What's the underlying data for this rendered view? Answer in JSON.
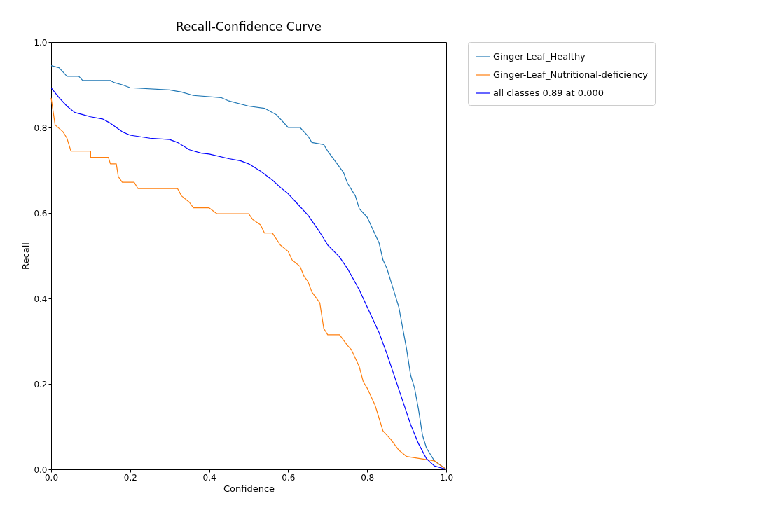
{
  "chart_data": {
    "type": "line",
    "title": "Recall-Confidence Curve",
    "xlabel": "Confidence",
    "ylabel": "Recall",
    "xlim": [
      0,
      1
    ],
    "ylim": [
      0,
      1
    ],
    "xticks": [
      {
        "value": 0,
        "label": "0.0"
      },
      {
        "value": 0.2,
        "label": "0.2"
      },
      {
        "value": 0.4,
        "label": "0.4"
      },
      {
        "value": 0.6,
        "label": "0.6"
      },
      {
        "value": 0.8,
        "label": "0.8"
      },
      {
        "value": 1,
        "label": "1.0"
      }
    ],
    "yticks": [
      {
        "value": 0,
        "label": "0.0"
      },
      {
        "value": 0.2,
        "label": "0.2"
      },
      {
        "value": 0.4,
        "label": "0.4"
      },
      {
        "value": 0.6,
        "label": "0.6"
      },
      {
        "value": 0.8,
        "label": "0.8"
      },
      {
        "value": 1,
        "label": "1.0"
      }
    ],
    "grid": false,
    "legend": "top right",
    "line_style": "solid",
    "series": [
      {
        "name": "Ginger-Leaf_Healthy",
        "color": "#1f77b4",
        "x": [
          0,
          0.02,
          0.03,
          0.04,
          0.07,
          0.08,
          0.15,
          0.16,
          0.18,
          0.2,
          0.3,
          0.33,
          0.36,
          0.43,
          0.45,
          0.5,
          0.54,
          0.57,
          0.6,
          0.63,
          0.65,
          0.66,
          0.69,
          0.7,
          0.72,
          0.74,
          0.75,
          0.77,
          0.78,
          0.79,
          0.8,
          0.82,
          0.83,
          0.84,
          0.85,
          0.86,
          0.87,
          0.88,
          0.89,
          0.9,
          0.91,
          0.92,
          0.93,
          0.94,
          0.95,
          0.97,
          1.0
        ],
        "values": [
          0.945,
          0.94,
          0.93,
          0.92,
          0.92,
          0.91,
          0.91,
          0.905,
          0.9,
          0.893,
          0.888,
          0.883,
          0.875,
          0.87,
          0.862,
          0.85,
          0.845,
          0.83,
          0.8,
          0.8,
          0.78,
          0.765,
          0.76,
          0.745,
          0.72,
          0.695,
          0.67,
          0.64,
          0.61,
          0.6,
          0.59,
          0.55,
          0.53,
          0.49,
          0.47,
          0.44,
          0.41,
          0.38,
          0.33,
          0.28,
          0.22,
          0.19,
          0.14,
          0.08,
          0.05,
          0.02,
          0.0
        ]
      },
      {
        "name": "Ginger-Leaf_Nutritional-deficiency",
        "color": "#ff7f0e",
        "x": [
          0,
          0.005,
          0.01,
          0.03,
          0.04,
          0.045,
          0.05,
          0.1,
          0.1,
          0.145,
          0.15,
          0.165,
          0.17,
          0.18,
          0.21,
          0.22,
          0.32,
          0.33,
          0.35,
          0.36,
          0.4,
          0.42,
          0.5,
          0.51,
          0.53,
          0.54,
          0.56,
          0.58,
          0.6,
          0.61,
          0.63,
          0.64,
          0.65,
          0.66,
          0.68,
          0.69,
          0.7,
          0.73,
          0.75,
          0.76,
          0.78,
          0.79,
          0.8,
          0.81,
          0.82,
          0.83,
          0.84,
          0.86,
          0.88,
          0.9,
          0.97,
          1.0
        ],
        "values": [
          0.869,
          0.838,
          0.806,
          0.79,
          0.775,
          0.76,
          0.745,
          0.745,
          0.73,
          0.73,
          0.715,
          0.715,
          0.685,
          0.672,
          0.672,
          0.657,
          0.657,
          0.64,
          0.625,
          0.612,
          0.612,
          0.598,
          0.598,
          0.585,
          0.572,
          0.553,
          0.553,
          0.525,
          0.51,
          0.49,
          0.475,
          0.452,
          0.44,
          0.415,
          0.39,
          0.33,
          0.315,
          0.315,
          0.29,
          0.28,
          0.24,
          0.205,
          0.19,
          0.17,
          0.15,
          0.12,
          0.09,
          0.07,
          0.045,
          0.03,
          0.02,
          0.0
        ]
      },
      {
        "name": "all classes 0.89 at 0.000",
        "color": "#0000ff",
        "x": [
          0,
          0.02,
          0.04,
          0.06,
          0.08,
          0.1,
          0.13,
          0.15,
          0.18,
          0.2,
          0.25,
          0.3,
          0.32,
          0.35,
          0.38,
          0.4,
          0.45,
          0.48,
          0.5,
          0.53,
          0.56,
          0.58,
          0.6,
          0.62,
          0.65,
          0.68,
          0.7,
          0.73,
          0.75,
          0.78,
          0.8,
          0.83,
          0.85,
          0.87,
          0.89,
          0.91,
          0.93,
          0.95,
          0.97,
          1.0
        ],
        "values": [
          0.893,
          0.87,
          0.85,
          0.835,
          0.83,
          0.825,
          0.82,
          0.81,
          0.79,
          0.782,
          0.775,
          0.772,
          0.765,
          0.748,
          0.74,
          0.738,
          0.727,
          0.722,
          0.715,
          0.698,
          0.677,
          0.66,
          0.645,
          0.625,
          0.595,
          0.555,
          0.525,
          0.497,
          0.47,
          0.42,
          0.38,
          0.32,
          0.27,
          0.215,
          0.16,
          0.105,
          0.06,
          0.025,
          0.008,
          0.0
        ]
      }
    ]
  }
}
